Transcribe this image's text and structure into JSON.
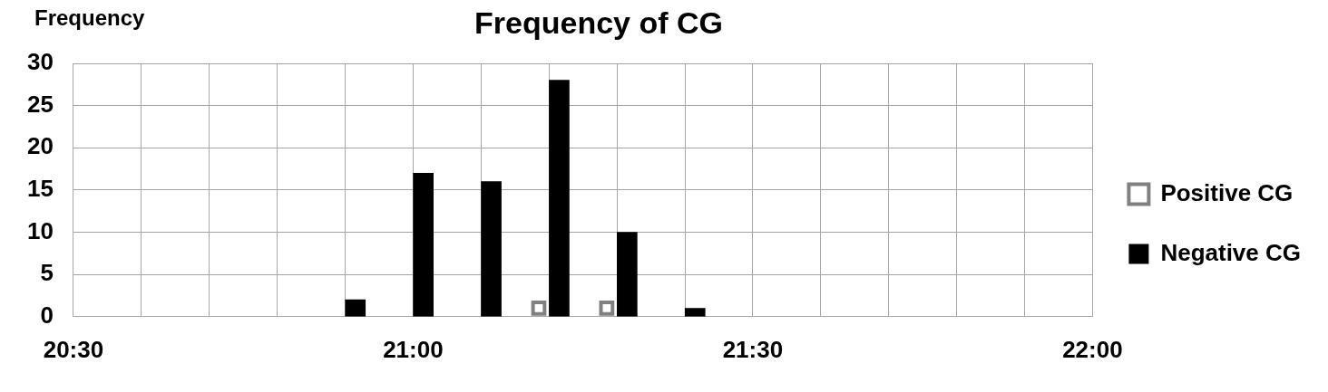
{
  "chart_data": {
    "type": "bar",
    "title": "Frequency of CG",
    "ylabel": "Frequency",
    "xlim": [
      20.5,
      22
    ],
    "ylim": [
      0,
      30
    ],
    "xticks": [
      {
        "value": 20.5,
        "label": "20:30"
      },
      {
        "value": 20.6,
        "label": null
      },
      {
        "value": 20.7,
        "label": null
      },
      {
        "value": 20.8,
        "label": null
      },
      {
        "value": 20.9,
        "label": null
      },
      {
        "value": 21,
        "label": "21:00"
      },
      {
        "value": 21.1,
        "label": null
      },
      {
        "value": 21.2,
        "label": null
      },
      {
        "value": 21.3,
        "label": null
      },
      {
        "value": 21.4,
        "label": null
      },
      {
        "value": 21.5,
        "label": "21:30"
      },
      {
        "value": 21.6,
        "label": null
      },
      {
        "value": 21.7,
        "label": null
      },
      {
        "value": 21.8,
        "label": null
      },
      {
        "value": 21.9,
        "label": null
      },
      {
        "value": 22,
        "label": "22:00"
      }
    ],
    "yticks": [
      0,
      5,
      10,
      15,
      20,
      25,
      30
    ],
    "grid": true,
    "legend": "right",
    "series": [
      {
        "name": "Positive CG",
        "type": "scatter",
        "marker": "square",
        "color": "#808080",
        "x": [
          21.185,
          21.285
        ],
        "values": [
          1,
          1
        ]
      },
      {
        "name": "Negative CG",
        "color": "#000000",
        "x": [
          20.915,
          21.015,
          21.115,
          21.215,
          21.315,
          21.415
        ],
        "values": [
          2,
          17,
          16,
          28,
          10,
          1
        ]
      }
    ]
  }
}
